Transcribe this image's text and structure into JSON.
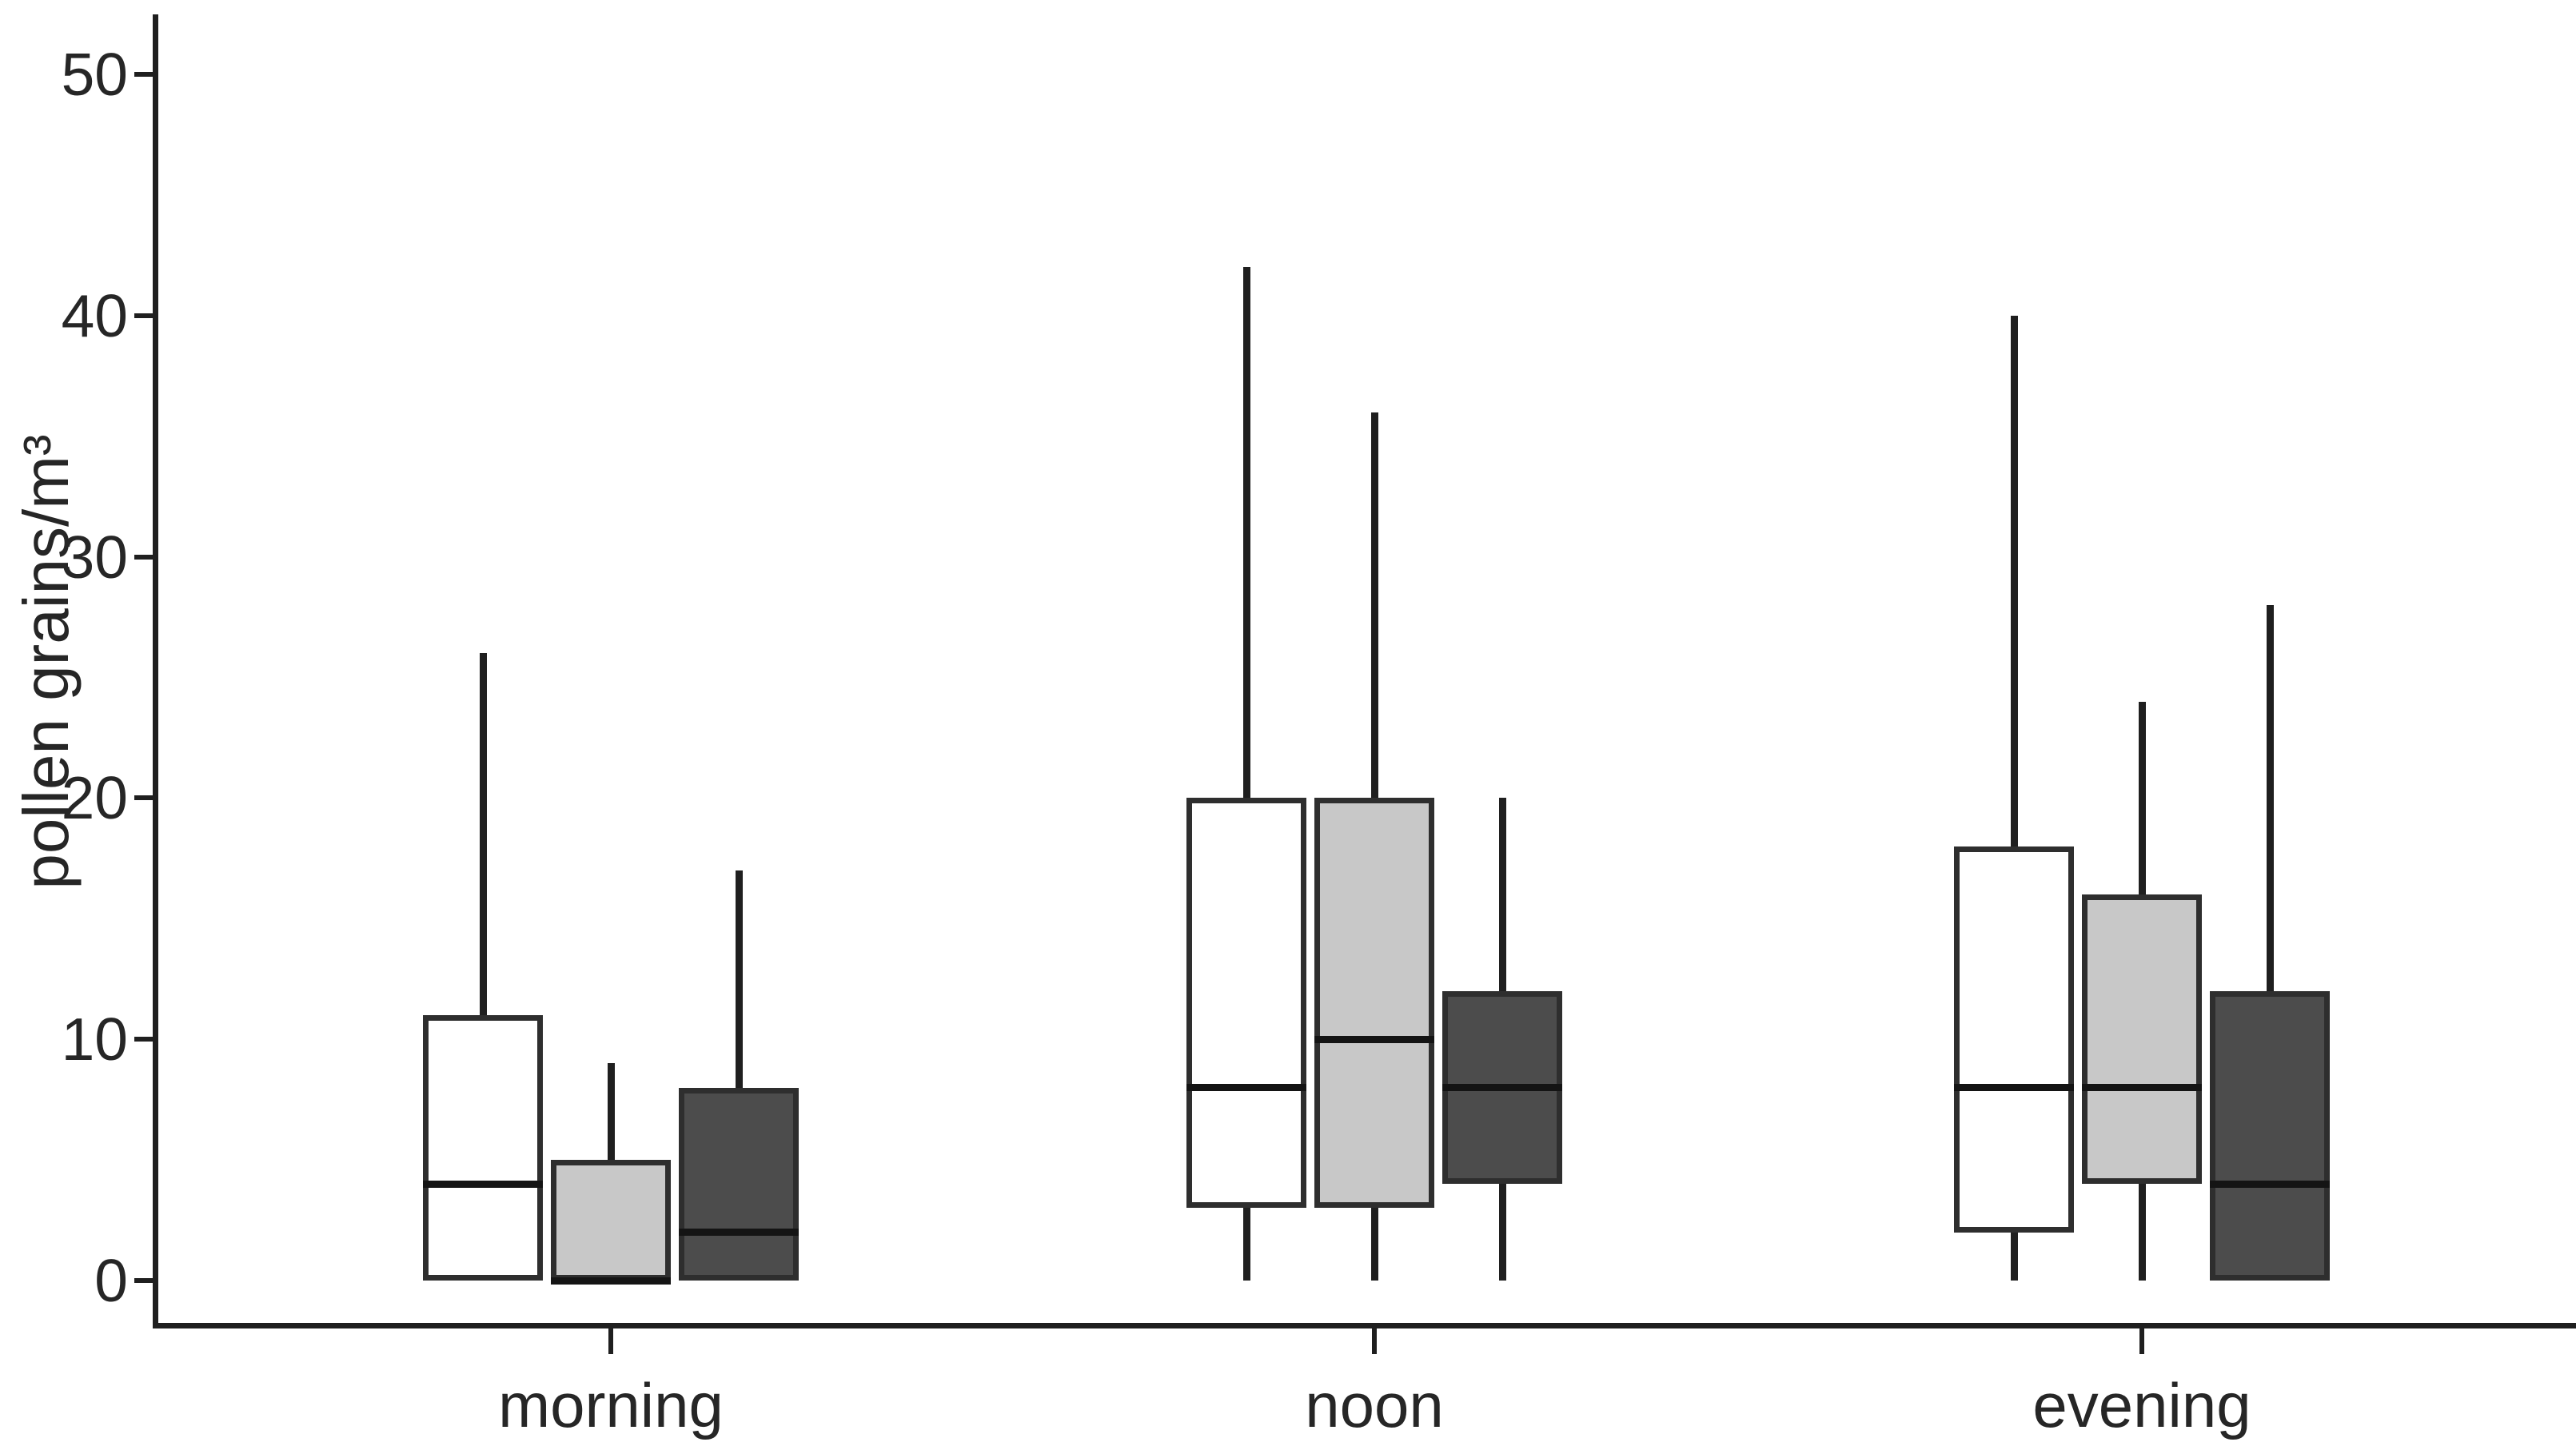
{
  "figure": {
    "background": "#ffffff",
    "axis_color": "#1f1f1f",
    "text_color": "#262626"
  },
  "chart_data": {
    "type": "box",
    "title": "",
    "xlabel": "",
    "ylabel": "pollen grains/m³",
    "categories": [
      "morning",
      "noon",
      "evening"
    ],
    "yticks": [
      0,
      10,
      20,
      30,
      40,
      50
    ],
    "ylim": [
      0,
      52
    ],
    "grid": false,
    "legend": "none",
    "box_border_color": "#2e2e2e",
    "median_color": "#141414",
    "series": [
      {
        "name": "white",
        "fill": "#ffffff",
        "boxes": [
          {
            "category": "morning",
            "min": 0,
            "q1": 0,
            "median": 4,
            "q3": 11,
            "max": 26
          },
          {
            "category": "noon",
            "min": 0,
            "q1": 3,
            "median": 8,
            "q3": 20,
            "max": 42
          },
          {
            "category": "evening",
            "min": 0,
            "q1": 2,
            "median": 8,
            "q3": 18,
            "max": 40
          }
        ]
      },
      {
        "name": "light-gray",
        "fill": "#c8c8c8",
        "boxes": [
          {
            "category": "morning",
            "min": 0,
            "q1": 0,
            "median": 0,
            "q3": 5,
            "max": 9
          },
          {
            "category": "noon",
            "min": 0,
            "q1": 3,
            "median": 10,
            "q3": 20,
            "max": 36
          },
          {
            "category": "evening",
            "min": 0,
            "q1": 4,
            "median": 8,
            "q3": 16,
            "max": 24
          }
        ]
      },
      {
        "name": "dark-gray",
        "fill": "#4c4c4c",
        "boxes": [
          {
            "category": "morning",
            "min": 0,
            "q1": 0,
            "median": 2,
            "q3": 8,
            "max": 17
          },
          {
            "category": "noon",
            "min": 0,
            "q1": 4,
            "median": 8,
            "q3": 12,
            "max": 20
          },
          {
            "category": "evening",
            "min": 0,
            "q1": 0,
            "median": 4,
            "q3": 12,
            "max": 28
          }
        ]
      }
    ]
  }
}
